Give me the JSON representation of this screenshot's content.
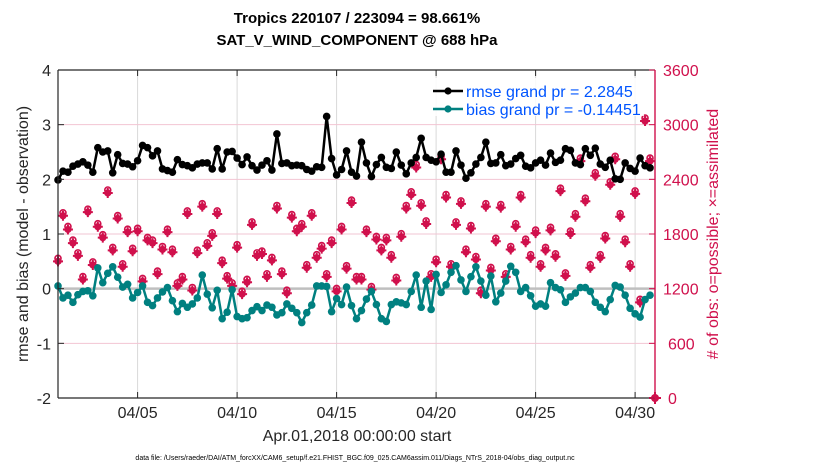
{
  "chart_data": {
    "type": "line",
    "title": "Tropics 220107 / 223094 = 98.661%",
    "subtitle": "SAT_V_WIND_COMPONENT @ 688 hPa",
    "xlabel": "Apr.01,2018 00:00:00 start",
    "ylabel": "rmse and bias (model - observation)",
    "ylabel_right": "# of obs: o=possible; ×=assimilated",
    "footnote": "data file: /Users/raeder/DAI/ATM_forcXX/CAM6_setup/f.e21.FHIST_BGC.f09_025.CAM6assim.011/Diags_NTrS_2018-04/obs_diag_output.nc",
    "xlim_days": [
      1,
      31
    ],
    "ylim": [
      -2,
      4
    ],
    "ylim_right": [
      0,
      3600
    ],
    "x_ticks": [
      {
        "day": 5,
        "label": "04/05"
      },
      {
        "day": 10,
        "label": "04/10"
      },
      {
        "day": 15,
        "label": "04/15"
      },
      {
        "day": 20,
        "label": "04/20"
      },
      {
        "day": 25,
        "label": "04/25"
      },
      {
        "day": 30,
        "label": "04/30"
      }
    ],
    "y_ticks": [
      "-2",
      "-1",
      "0",
      "1",
      "2",
      "3",
      "4"
    ],
    "y_ticks_right": [
      "0",
      "600",
      "1200",
      "1800",
      "2400",
      "3000",
      "3600"
    ],
    "grid": true,
    "zero_line": true,
    "legend_position": "top-right",
    "legend": [
      {
        "label": "rmse grand pr = 2.2845",
        "color": "#000000"
      },
      {
        "label": "bias grand pr = -0.14451",
        "color": "#008080"
      }
    ],
    "colors": {
      "rmse": "#000000",
      "bias": "#008080",
      "obs": "#d0104c",
      "legend_text": "#0055ff",
      "zero_line": "#bfbfbf",
      "grid": "#d9d9d9",
      "grid_right": "#f2c4d3"
    },
    "x_start_day": 1.0,
    "x_step_days": 0.25,
    "series": [
      {
        "name": "rmse",
        "values": [
          1.99,
          2.15,
          2.13,
          2.24,
          2.28,
          2.32,
          2.26,
          2.13,
          2.58,
          2.5,
          2.52,
          2.12,
          2.45,
          2.29,
          2.28,
          2.23,
          2.34,
          2.62,
          2.58,
          2.43,
          2.52,
          2.19,
          2.16,
          2.13,
          2.36,
          2.27,
          2.25,
          2.21,
          2.28,
          2.3,
          2.3,
          2.19,
          2.56,
          2.19,
          2.5,
          2.51,
          2.39,
          2.27,
          2.41,
          2.25,
          2.17,
          2.26,
          2.34,
          2.17,
          2.83,
          2.29,
          2.3,
          2.25,
          2.26,
          2.25,
          2.18,
          2.15,
          2.23,
          2.22,
          3.15,
          2.38,
          2.08,
          2.18,
          2.52,
          2.13,
          2.06,
          2.68,
          2.3,
          2.05,
          2.27,
          2.4,
          2.22,
          2.2,
          2.5,
          2.26,
          2.1,
          2.3,
          2.4,
          2.75,
          2.4,
          2.35,
          2.32,
          2.46,
          2.13,
          2.13,
          2.52,
          2.26,
          2.02,
          2.12,
          2.28,
          2.4,
          2.68,
          2.29,
          2.3,
          2.45,
          2.25,
          2.28,
          2.38,
          2.44,
          2.24,
          2.21,
          2.3,
          2.35,
          2.26,
          2.48,
          2.31,
          2.35,
          2.56,
          2.53,
          2.3,
          2.27,
          2.56,
          2.44,
          2.57,
          2.28,
          2.22,
          2.35,
          2.01,
          2.0,
          2.3,
          2.2,
          2.15,
          2.39,
          2.25,
          2.21
        ],
        "color": "#000000"
      },
      {
        "name": "bias",
        "values": [
          0.05,
          -0.17,
          -0.12,
          -0.25,
          -0.11,
          -0.05,
          -0.04,
          -0.13,
          0.38,
          0.11,
          0.28,
          0.4,
          0.21,
          0.03,
          0.08,
          -0.17,
          -0.07,
          0.05,
          -0.25,
          -0.31,
          -0.17,
          -0.06,
          0.02,
          -0.22,
          -0.42,
          -0.27,
          -0.34,
          -0.28,
          -0.17,
          0.25,
          -0.1,
          -0.35,
          -0.03,
          -0.55,
          -0.43,
          -0.02,
          -0.51,
          -0.55,
          -0.53,
          -0.4,
          -0.33,
          -0.4,
          -0.3,
          -0.34,
          -0.48,
          -0.44,
          -0.28,
          -0.36,
          -0.44,
          -0.62,
          -0.44,
          -0.3,
          0.05,
          0.05,
          0.04,
          -0.42,
          -0.18,
          -0.29,
          0.03,
          -0.31,
          -0.55,
          -0.4,
          -0.19,
          -0.05,
          -0.29,
          -0.55,
          -0.6,
          -0.29,
          -0.24,
          -0.26,
          -0.29,
          -0.05,
          0.25,
          -0.34,
          0.14,
          -0.38,
          0.26,
          -0.07,
          0.07,
          0.3,
          0.42,
          0.16,
          -0.05,
          0.22,
          0.4,
          0.14,
          -0.12,
          0.23,
          -0.24,
          -0.08,
          0.14,
          0.41,
          0.3,
          -0.05,
          0.02,
          -0.13,
          -0.32,
          -0.28,
          -0.32,
          0.11,
          0.02,
          -0.02,
          -0.25,
          -0.15,
          -0.08,
          0.02,
          0.02,
          -0.05,
          -0.25,
          -0.34,
          -0.42,
          -0.2,
          0.06,
          0.03,
          -0.12,
          -0.36,
          -0.46,
          -0.52,
          -0.2,
          -0.12
        ],
        "color": "#008080"
      },
      {
        "name": "obs_assimilated",
        "axis": "right",
        "values": [
          1500,
          2000,
          1850,
          1700,
          1560,
          1300,
          2040,
          1460,
          1880,
          1760,
          2250,
          1620,
          1970,
          1440,
          1820,
          1610,
          1830,
          1280,
          1730,
          1700,
          1360,
          1630,
          1820,
          1600,
          1230,
          1300,
          2020,
          1180,
          1590,
          2100,
          1670,
          1780,
          2020,
          1480,
          1310,
          1230,
          1650,
          1140,
          1270,
          1900,
          1560,
          1580,
          1330,
          1510,
          2080,
          1360,
          1150,
          1980,
          1830,
          1880,
          1430,
          2000,
          1540,
          1640,
          1330,
          1700,
          1170,
          1850,
          1420,
          2140,
          1300,
          1300,
          1820,
          1190,
          1740,
          1620,
          1730,
          1540,
          1290,
          1770,
          2080,
          2230,
          2530,
          2110,
          1910,
          1330,
          1490,
          2620,
          2200,
          1440,
          1900,
          2130,
          1600,
          1860,
          1520,
          1150,
          2100,
          1400,
          1720,
          2090,
          1330,
          1630,
          1880,
          2200,
          1710,
          1540,
          1810,
          1440,
          1620,
          1840,
          1550,
          2270,
          1340,
          1800,
          1990,
          2600,
          2160,
          1430,
          2440,
          1540,
          1750,
          2340,
          2620,
          1990,
          1710,
          1440,
          2240,
          1050,
          3040,
          2600
        ],
        "color": "#d0104c"
      },
      {
        "name": "obs_possible",
        "axis": "right",
        "values": [
          1500,
          2000,
          1850,
          1700,
          1560,
          1300,
          2040,
          1460,
          1880,
          1760,
          2250,
          1620,
          1970,
          1440,
          1820,
          1610,
          1830,
          1280,
          1730,
          1700,
          1360,
          1630,
          1820,
          1600,
          1230,
          1300,
          2020,
          1180,
          1590,
          2100,
          1670,
          1780,
          2020,
          1480,
          1310,
          1230,
          1650,
          1140,
          1270,
          1900,
          1560,
          1580,
          1330,
          1510,
          2080,
          1360,
          1150,
          1980,
          1830,
          1880,
          1430,
          2000,
          1540,
          1640,
          1330,
          1700,
          1170,
          1850,
          1420,
          2140,
          1300,
          1300,
          1820,
          1190,
          1740,
          1620,
          1730,
          1540,
          1290,
          1770,
          2080,
          2230,
          2530,
          2110,
          1910,
          1330,
          1490,
          2620,
          2200,
          1440,
          1900,
          2130,
          1600,
          1860,
          1520,
          1150,
          2100,
          1400,
          1720,
          2090,
          1330,
          1630,
          1880,
          2200,
          1710,
          1540,
          1810,
          1440,
          1620,
          1840,
          1550,
          2270,
          1340,
          1800,
          1990,
          2600,
          2160,
          1430,
          2440,
          1540,
          1750,
          2340,
          2620,
          1990,
          1710,
          1440,
          2240,
          1050,
          3040,
          2600
        ],
        "color": "#d0104c"
      },
      {
        "name": "obs_end_marker",
        "axis": "right",
        "values": [
          0
        ],
        "color": "#d0104c"
      }
    ]
  }
}
